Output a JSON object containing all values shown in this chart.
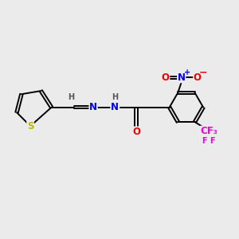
{
  "bg_color": "#ebebeb",
  "atom_colors": {
    "C": "#000000",
    "H": "#555555",
    "N": "#0000ee",
    "O": "#ee0000",
    "S": "#bbbb00",
    "F": "#ee00ee"
  },
  "bond_color": "#000000",
  "lw": 1.4,
  "dbo": 0.06,
  "fs": 8.5,
  "fs_small": 7.0
}
